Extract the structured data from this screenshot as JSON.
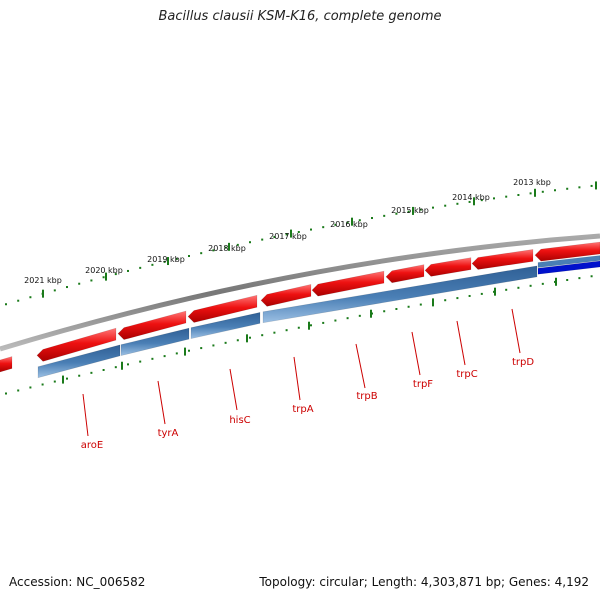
{
  "title": "Bacillus clausii KSM-K16, complete genome",
  "footer": {
    "accession_label": "Accession:",
    "accession_value": "NC_006582",
    "summary": "Topology: circular; Length: 4,303,871 bp; Genes: 4,192"
  },
  "scale_ticks": [
    "2021 kbp",
    "2020 kbp",
    "2019 kbp",
    "2018 kbp",
    "2017 kbp",
    "2016 kbp",
    "2015 kbp",
    "2014 kbp",
    "2013 kbp"
  ],
  "genes": [
    "aroE",
    "tyrA",
    "hisC",
    "trpA",
    "trpB",
    "trpF",
    "trpC",
    "trpD"
  ],
  "colors": {
    "forward_strand": "#ee1111",
    "reverse_strand": "#4a7fb5",
    "highlight_gene": "#0011cc",
    "backbone": "#888888",
    "tick_marks": "#1a7a1a",
    "gene_labels": "#cc0000"
  }
}
